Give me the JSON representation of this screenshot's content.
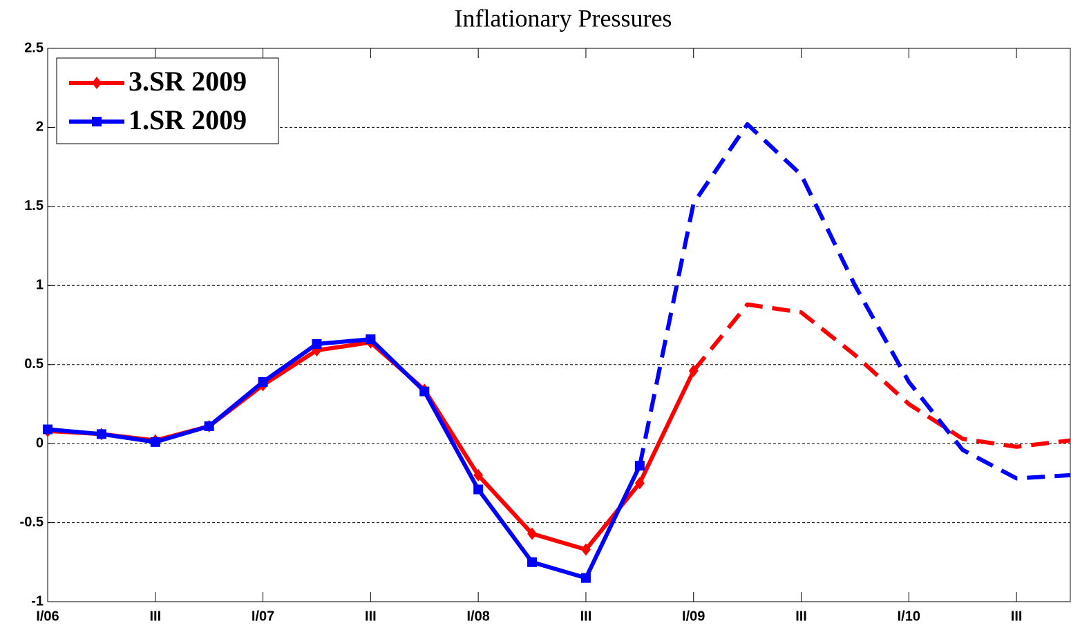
{
  "chart_data": {
    "type": "line",
    "title": "Inflationary Pressures",
    "categories": [
      "I/06",
      null,
      "III",
      null,
      "I/07",
      null,
      "III",
      null,
      "I/08",
      null,
      "III",
      null,
      "I/09",
      null,
      "III",
      null,
      "I/10",
      null,
      "III",
      null
    ],
    "series": [
      {
        "name": "3.SR 2009",
        "color": "#ff0000",
        "marker": "diamond",
        "dashed_from": 12,
        "values": [
          0.08,
          0.06,
          0.02,
          0.11,
          0.37,
          0.59,
          0.64,
          0.34,
          -0.2,
          -0.57,
          -0.67,
          -0.25,
          0.46,
          0.88,
          0.83,
          0.56,
          0.25,
          0.03,
          -0.02,
          0.02
        ]
      },
      {
        "name": "1.SR 2009",
        "color": "#0000ff",
        "marker": "square",
        "dashed_from": 11,
        "values": [
          0.09,
          0.06,
          0.01,
          0.11,
          0.39,
          0.63,
          0.66,
          0.33,
          -0.29,
          -0.75,
          -0.85,
          -0.14,
          1.52,
          2.02,
          1.7,
          1.0,
          0.39,
          -0.04,
          -0.22,
          -0.2
        ]
      }
    ],
    "ylim": [
      -1,
      2.5
    ],
    "yticks": [
      -1,
      -0.5,
      0,
      0.5,
      1,
      1.5,
      2,
      2.5
    ],
    "grid": true,
    "legend": "upper left"
  }
}
